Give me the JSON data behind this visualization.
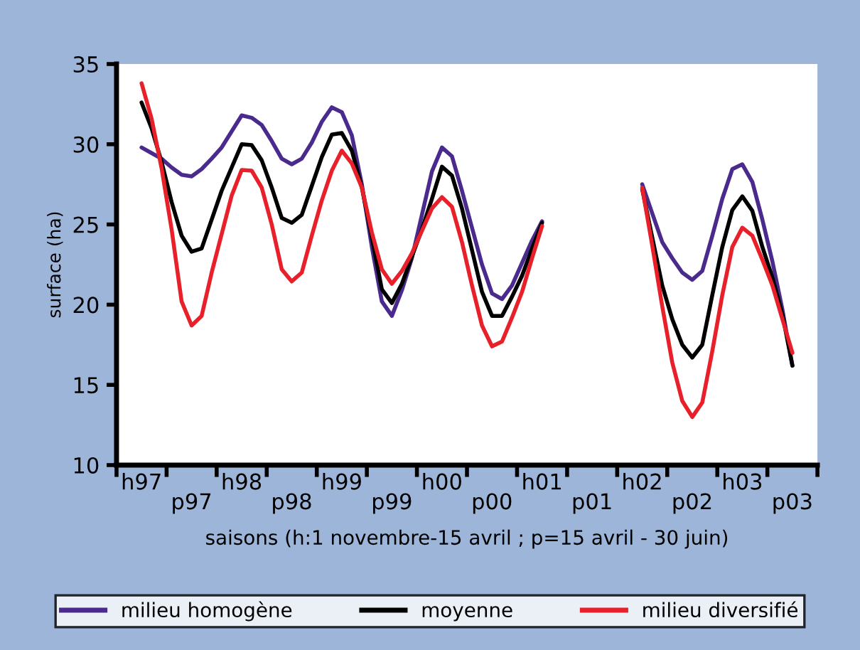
{
  "chart_data": {
    "type": "line",
    "ylabel": "surface (ha)",
    "xlabel": "saisons (h:1 novembre-15 avril ; p=15 avril - 30 juin)",
    "categories": [
      null,
      null,
      "h97",
      null,
      null,
      null,
      null,
      "p97",
      null,
      null,
      null,
      null,
      "h98",
      null,
      null,
      null,
      null,
      "p98",
      null,
      null,
      null,
      null,
      "h99",
      null,
      null,
      null,
      null,
      "p99",
      null,
      null,
      null,
      null,
      "h00",
      null,
      null,
      null,
      null,
      "p00",
      null,
      null,
      null,
      null,
      "h01",
      null,
      null,
      null,
      null,
      "p01",
      null,
      null,
      null,
      null,
      "h02",
      null,
      null,
      null,
      null,
      "p02",
      null,
      null,
      null,
      null,
      "h03",
      null,
      null,
      null,
      null,
      "p03",
      null,
      null
    ],
    "ylim": [
      10,
      35
    ],
    "yticks": [
      10,
      15,
      20,
      25,
      30,
      35
    ],
    "grid": false,
    "legend": "bottom",
    "marker": "none",
    "line_style": "solid",
    "series": [
      {
        "name": "milieu homogène",
        "color": "#4a2a8c",
        "values": [
          null,
          null,
          29.8,
          29.45,
          29.1,
          28.55,
          28.1,
          28.0,
          28.45,
          29.1,
          29.8,
          30.8,
          31.8,
          31.65,
          31.2,
          30.2,
          29.1,
          28.75,
          29.1,
          30.1,
          31.4,
          32.3,
          32.0,
          30.55,
          27.5,
          23.6,
          20.2,
          19.3,
          20.9,
          22.9,
          25.6,
          28.3,
          29.8,
          29.25,
          27.1,
          24.8,
          22.5,
          20.7,
          20.35,
          21.2,
          22.6,
          24.0,
          25.2,
          null,
          null,
          null,
          null,
          null,
          null,
          null,
          null,
          null,
          27.5,
          25.7,
          23.9,
          22.9,
          22.0,
          21.55,
          22.1,
          24.3,
          26.6,
          28.45,
          28.75,
          27.65,
          25.3,
          22.7,
          19.7,
          16.2,
          null,
          null
        ]
      },
      {
        "name": "moyenne",
        "color": "#000000",
        "values": [
          null,
          null,
          32.6,
          31.0,
          28.9,
          26.4,
          24.3,
          23.3,
          23.5,
          25.3,
          27.1,
          28.55,
          30.0,
          29.95,
          29.0,
          27.3,
          25.4,
          25.1,
          25.6,
          27.4,
          29.2,
          30.6,
          30.7,
          29.6,
          27.3,
          24.2,
          20.95,
          20.1,
          21.3,
          23.0,
          24.7,
          26.6,
          28.6,
          28.05,
          26.0,
          23.4,
          20.8,
          19.3,
          19.3,
          20.5,
          21.8,
          23.5,
          25.1,
          null,
          null,
          null,
          null,
          null,
          null,
          null,
          null,
          null,
          27.2,
          24.2,
          21.2,
          19.1,
          17.5,
          16.7,
          17.5,
          20.6,
          23.6,
          25.9,
          26.75,
          25.85,
          23.6,
          21.7,
          19.4,
          16.2,
          null,
          null
        ]
      },
      {
        "name": "milieu diversifié",
        "color": "#e8202a",
        "values": [
          null,
          null,
          33.8,
          31.6,
          28.5,
          24.7,
          20.2,
          18.7,
          19.3,
          22.0,
          24.4,
          26.8,
          28.4,
          28.35,
          27.3,
          25.0,
          22.2,
          21.45,
          22.0,
          24.3,
          26.5,
          28.35,
          29.6,
          28.8,
          27.3,
          24.5,
          22.2,
          21.3,
          22.1,
          23.2,
          24.6,
          26.0,
          26.7,
          26.1,
          23.9,
          21.2,
          18.7,
          17.4,
          17.7,
          19.2,
          20.8,
          22.9,
          24.9,
          null,
          null,
          null,
          null,
          null,
          null,
          null,
          null,
          null,
          27.3,
          23.7,
          19.9,
          16.4,
          14.0,
          13.0,
          13.9,
          17.1,
          20.6,
          23.6,
          24.8,
          24.3,
          22.8,
          21.2,
          19.1,
          17.0,
          null,
          null
        ]
      }
    ]
  }
}
